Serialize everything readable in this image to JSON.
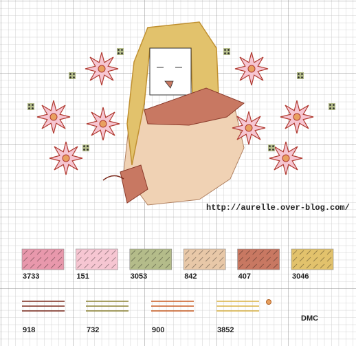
{
  "url": "http://aurelle.over-blog.com/",
  "fill_legend": [
    {
      "code": "3733",
      "color": "#e898ac"
    },
    {
      "code": "151",
      "color": "#f6c6d2"
    },
    {
      "code": "3053",
      "color": "#b4bc8a"
    },
    {
      "code": "842",
      "color": "#e8c8a8"
    },
    {
      "code": "407",
      "color": "#c87862"
    },
    {
      "code": "3046",
      "color": "#e2c26c"
    }
  ],
  "line_legend": [
    {
      "code": "918",
      "color": "#7a2a1c"
    },
    {
      "code": "732",
      "color": "#8a8030"
    },
    {
      "code": "900",
      "color": "#c85a20"
    },
    {
      "code": "3852",
      "color": "#d8b040"
    }
  ],
  "brand": "DMC"
}
